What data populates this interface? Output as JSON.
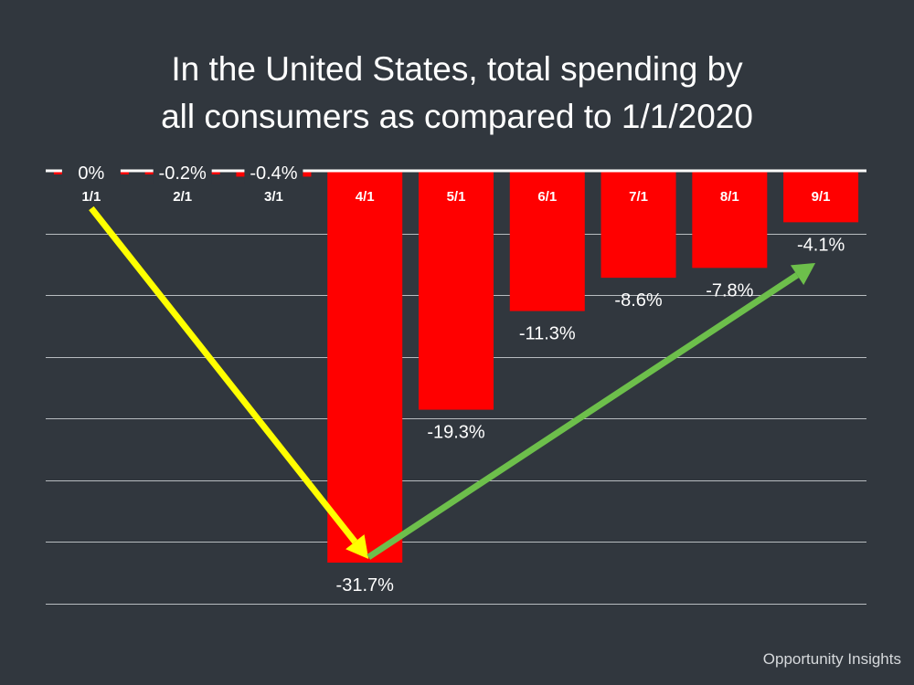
{
  "title_line1": "In the United States, total spending by",
  "title_line2": "all consumers as compared to 1/1/2020",
  "source": "Opportunity Insights",
  "colors": {
    "background": "#31373e",
    "bar": "#ff0000",
    "decline_arrow": "#ffff00",
    "recovery_arrow": "#6dbf4b",
    "gridline": "#b8bcc0",
    "baseline": "#ffffff",
    "text": "#ffffff"
  },
  "chart_data": {
    "type": "bar",
    "title": "In the United States, total spending by all consumers as compared to 1/1/2020",
    "categories": [
      "1/1",
      "2/1",
      "3/1",
      "4/1",
      "5/1",
      "6/1",
      "7/1",
      "8/1",
      "9/1"
    ],
    "values": [
      0,
      -0.2,
      -0.4,
      -31.7,
      -19.3,
      -11.3,
      -8.6,
      -7.8,
      -4.1
    ],
    "data_labels": [
      "0%",
      "-0.2%",
      "-0.4%",
      "-31.7%",
      "-19.3%",
      "-11.3%",
      "-8.6%",
      "-7.8%",
      "-4.1%"
    ],
    "ylim": [
      -35,
      0
    ],
    "grid": true,
    "annotations": [
      {
        "type": "arrow",
        "color": "yellow",
        "from": "1/1",
        "to": "4/1"
      },
      {
        "type": "arrow",
        "color": "green",
        "from": "4/1",
        "to": "9/1"
      }
    ]
  }
}
